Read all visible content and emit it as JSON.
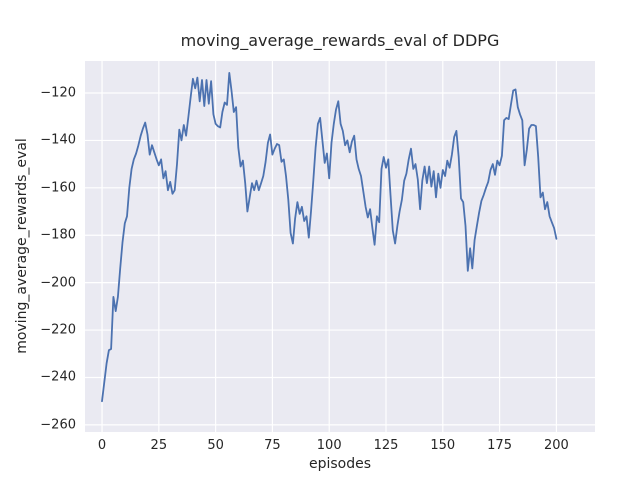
{
  "figure": {
    "title": "moving_average_rewards_eval of DDPG",
    "background_color": "#ffffff"
  },
  "chart_data": {
    "type": "line",
    "title": "moving_average_rewards_eval of DDPG",
    "xlabel": "episodes",
    "ylabel": "moving_average_rewards_eval",
    "series_name": "moving_average_rewards_eval of DDPG",
    "grid": true,
    "legend": "none",
    "style": "seaborn-darkgrid",
    "plot_bg_color": "#eaeaf2",
    "grid_color": "#ffffff",
    "line_color": "#4c72b0",
    "line_width": 1.8,
    "text_color": "#262626",
    "xlim": [
      -7.5,
      217
    ],
    "ylim": [
      -263,
      -106.5
    ],
    "xticks": [
      0,
      25,
      50,
      75,
      100,
      125,
      150,
      175,
      200
    ],
    "yticks": [
      -120,
      -140,
      -160,
      -180,
      -200,
      -220,
      -240,
      -260
    ],
    "xtick_labels": [
      "0",
      "25",
      "50",
      "75",
      "100",
      "125",
      "150",
      "175",
      "200"
    ],
    "ytick_labels": [
      "−120",
      "−140",
      "−160",
      "−180",
      "−200",
      "−220",
      "−240",
      "−260"
    ],
    "x_start": 0,
    "x_step": 1,
    "values": [
      -250,
      -242,
      -234,
      -228.5,
      -228,
      -206,
      -212,
      -206,
      -194,
      -183,
      -175,
      -172,
      -160,
      -152,
      -148,
      -145.5,
      -142,
      -138,
      -135,
      -132.5,
      -137.5,
      -146,
      -142,
      -145,
      -148,
      -150.5,
      -148,
      -156,
      -153,
      -161,
      -157.5,
      -162.5,
      -161,
      -150,
      -135.5,
      -140,
      -133.5,
      -138,
      -130,
      -122,
      -114,
      -118,
      -113.5,
      -123.5,
      -114.5,
      -125.5,
      -114.5,
      -124.5,
      -115,
      -129,
      -133,
      -134,
      -134.5,
      -128,
      -124,
      -125,
      -111.5,
      -119,
      -128,
      -126,
      -143,
      -151,
      -148.5,
      -158,
      -170,
      -164,
      -158,
      -161,
      -157,
      -161,
      -158,
      -155,
      -149,
      -141,
      -137.5,
      -146,
      -143.5,
      -141.5,
      -142,
      -149,
      -148,
      -155,
      -165,
      -179,
      -183.5,
      -173,
      -166,
      -171,
      -168,
      -174,
      -172,
      -181,
      -170,
      -157,
      -143,
      -133,
      -130.5,
      -140,
      -149.5,
      -145.5,
      -156,
      -141,
      -133,
      -127,
      -123.5,
      -133,
      -136,
      -142,
      -140,
      -145,
      -140.5,
      -138,
      -148,
      -152,
      -155,
      -161.5,
      -168,
      -172.5,
      -169,
      -177,
      -184,
      -172,
      -174.5,
      -152,
      -147,
      -151.5,
      -148,
      -163,
      -178,
      -183.5,
      -176,
      -170,
      -165,
      -157,
      -154,
      -148,
      -143.5,
      -152,
      -150,
      -156.5,
      -169,
      -157,
      -151,
      -158,
      -151,
      -159.5,
      -153,
      -164,
      -154,
      -160,
      -152.5,
      -155,
      -148.5,
      -151.5,
      -146,
      -138.5,
      -136,
      -147,
      -164.5,
      -166,
      -176,
      -195,
      -185.5,
      -194,
      -182,
      -176,
      -170.5,
      -165.5,
      -163,
      -160,
      -157.5,
      -152.5,
      -150,
      -154.5,
      -148.5,
      -150.5,
      -146.5,
      -131.5,
      -130.5,
      -131,
      -125,
      -119,
      -118.5,
      -126,
      -129,
      -131.5,
      -150.5,
      -144,
      -135,
      -133.5,
      -133.5,
      -134,
      -147,
      -164,
      -162,
      -169,
      -166,
      -172,
      -174.5,
      -177,
      -181.5
    ]
  }
}
